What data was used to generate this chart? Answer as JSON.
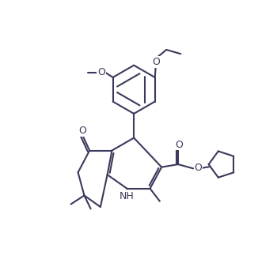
{
  "lc": "#3a3a5c",
  "bg": "#ffffff",
  "lw": 1.5,
  "fs": 9,
  "fig_width": 3.5,
  "fig_height": 3.52,
  "dpi": 100,
  "xlim": [
    -1,
    11
  ],
  "ylim": [
    -0.5,
    10.5
  ]
}
